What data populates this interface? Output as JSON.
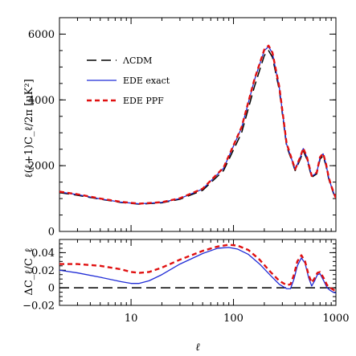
{
  "colors": {
    "lcdm": "#000000",
    "ede_exact": "#1f2bd6",
    "ede_ppf": "#e01010"
  },
  "chart_data": [
    {
      "type": "line",
      "panel": "top",
      "xscale": "log",
      "xlim": [
        2,
        1000
      ],
      "ylim": [
        0,
        6500
      ],
      "xlabel": "ℓ",
      "ylabel": "ℓ(ℓ+1)C_ℓ/2π [μK²]",
      "yticks": [
        0,
        2000,
        4000,
        6000
      ],
      "ytick_labels": [
        "0",
        "2000",
        "4000",
        "6000"
      ],
      "legend_position": "top-left",
      "legend": [
        {
          "key": "lcdm",
          "label": "ΛCDM",
          "style": "dashed"
        },
        {
          "key": "ede_exact",
          "label": "EDE exact",
          "style": "solid"
        },
        {
          "key": "ede_ppf",
          "label": "EDE PPF",
          "style": "dashed"
        }
      ],
      "series": [
        {
          "name": "ΛCDM",
          "x": [
            2,
            3,
            5,
            8,
            12,
            20,
            30,
            50,
            80,
            120,
            160,
            200,
            220,
            240,
            280,
            330,
            400,
            450,
            480,
            520,
            580,
            650,
            700,
            750,
            800,
            850,
            900,
            950,
            1000
          ],
          "y": [
            1180,
            1100,
            980,
            880,
            830,
            870,
            980,
            1250,
            1850,
            3000,
            4400,
            5350,
            5500,
            5300,
            4300,
            2600,
            1850,
            2200,
            2450,
            2200,
            1650,
            1750,
            2200,
            2300,
            2000,
            1600,
            1350,
            1150,
            1000
          ]
        },
        {
          "name": "EDE exact",
          "x": [
            2,
            3,
            5,
            8,
            12,
            20,
            30,
            50,
            80,
            120,
            160,
            200,
            220,
            240,
            280,
            330,
            400,
            450,
            480,
            520,
            580,
            650,
            700,
            750,
            800,
            850,
            900,
            950,
            1000
          ],
          "y": [
            1200,
            1120,
            990,
            890,
            840,
            885,
            1000,
            1290,
            1920,
            3150,
            4600,
            5500,
            5620,
            5420,
            4380,
            2650,
            1880,
            2260,
            2520,
            2260,
            1680,
            1780,
            2250,
            2360,
            2050,
            1640,
            1380,
            1180,
            1010
          ]
        },
        {
          "name": "EDE PPF",
          "x": [
            2,
            3,
            5,
            8,
            12,
            20,
            30,
            50,
            80,
            120,
            160,
            200,
            220,
            240,
            280,
            330,
            400,
            450,
            480,
            520,
            580,
            650,
            700,
            750,
            800,
            850,
            900,
            950,
            1000
          ],
          "y": [
            1210,
            1130,
            1000,
            900,
            845,
            890,
            1010,
            1300,
            1940,
            3170,
            4620,
            5530,
            5650,
            5440,
            4400,
            2680,
            1890,
            2270,
            2530,
            2270,
            1690,
            1790,
            2260,
            2370,
            2060,
            1650,
            1390,
            1185,
            1015
          ]
        }
      ]
    },
    {
      "type": "line",
      "panel": "bottom",
      "xscale": "log",
      "xlim": [
        2,
        1000
      ],
      "ylim": [
        -0.02,
        0.055
      ],
      "xlabel": "ℓ",
      "ylabel": "ΔC_ℓ/C_ℓ",
      "xticks": [
        10,
        100,
        1000
      ],
      "xtick_labels": [
        "10",
        "100",
        "1000"
      ],
      "yticks": [
        -0.02,
        0,
        0.02,
        0.04
      ],
      "ytick_labels": [
        "−0.02",
        "0",
        "0.02",
        "0.04"
      ],
      "series": [
        {
          "name": "ΛCDM",
          "x": [
            2,
            1000
          ],
          "y": [
            0,
            0
          ]
        },
        {
          "name": "EDE exact",
          "x": [
            2,
            3,
            5,
            8,
            10,
            12,
            15,
            20,
            30,
            50,
            70,
            90,
            110,
            140,
            180,
            230,
            280,
            330,
            360,
            390,
            420,
            460,
            500,
            540,
            580,
            620,
            660,
            700,
            760,
            820,
            880,
            940,
            1000
          ],
          "y": [
            0.02,
            0.017,
            0.012,
            0.007,
            0.005,
            0.005,
            0.008,
            0.015,
            0.027,
            0.039,
            0.045,
            0.046,
            0.044,
            0.038,
            0.027,
            0.014,
            0.004,
            -0.001,
            -0.001,
            0.01,
            0.025,
            0.034,
            0.028,
            0.012,
            0.002,
            0.008,
            0.015,
            0.016,
            0.008,
            0.0,
            -0.003,
            -0.005,
            -0.006
          ]
        },
        {
          "name": "EDE PPF",
          "x": [
            2,
            3,
            5,
            8,
            10,
            12,
            15,
            20,
            30,
            50,
            70,
            90,
            110,
            140,
            180,
            230,
            280,
            330,
            360,
            390,
            420,
            460,
            500,
            540,
            580,
            620,
            660,
            700,
            760,
            820,
            880,
            940,
            1000
          ],
          "y": [
            0.027,
            0.027,
            0.025,
            0.021,
            0.018,
            0.017,
            0.018,
            0.023,
            0.032,
            0.042,
            0.047,
            0.049,
            0.048,
            0.043,
            0.032,
            0.018,
            0.008,
            0.003,
            0.004,
            0.015,
            0.03,
            0.037,
            0.03,
            0.015,
            0.006,
            0.011,
            0.017,
            0.018,
            0.011,
            0.003,
            0.0,
            -0.002,
            -0.004
          ]
        }
      ]
    }
  ]
}
